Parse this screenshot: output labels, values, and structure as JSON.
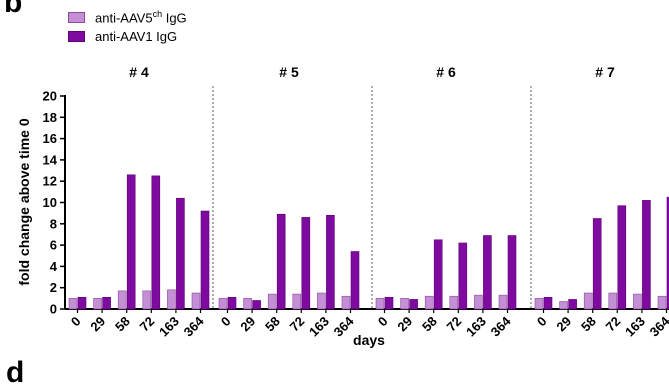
{
  "figure": {
    "panel_letter_top": "b",
    "panel_letter_bottom": "d"
  },
  "legend": {
    "series1_prefix": "anti-AAV5",
    "series1_sup": "ch",
    "series1_suffix": " IgG",
    "series2": "anti-AAV1 IgG"
  },
  "colors": {
    "series1": "#c48fd4",
    "series1_stroke": "#8a4c9c",
    "series2": "#7e0aa0",
    "series2_stroke": "#5e0477",
    "divider": "#777777"
  },
  "chart_data": {
    "type": "bar",
    "ylabel": "fold change above time 0",
    "xlabel": "days",
    "ylim": [
      0,
      20
    ],
    "yticks": [
      0,
      2,
      4,
      6,
      8,
      10,
      12,
      14,
      16,
      18,
      20
    ],
    "categories": [
      "0",
      "29",
      "58",
      "72",
      "163",
      "364"
    ],
    "panels": [
      {
        "title": "# 4",
        "series": [
          {
            "name": "anti-AAV5ch IgG",
            "values": [
              1.0,
              1.0,
              1.7,
              1.7,
              1.8,
              1.5
            ]
          },
          {
            "name": "anti-AAV1 IgG",
            "values": [
              1.1,
              1.1,
              12.6,
              12.5,
              10.4,
              9.2
            ]
          }
        ]
      },
      {
        "title": "# 5",
        "series": [
          {
            "name": "anti-AAV5ch IgG",
            "values": [
              1.0,
              1.0,
              1.4,
              1.4,
              1.5,
              1.2
            ]
          },
          {
            "name": "anti-AAV1 IgG",
            "values": [
              1.1,
              0.8,
              8.9,
              8.6,
              8.8,
              5.4
            ]
          }
        ]
      },
      {
        "title": "# 6",
        "series": [
          {
            "name": "anti-AAV5ch IgG",
            "values": [
              1.0,
              1.0,
              1.2,
              1.2,
              1.3,
              1.3
            ]
          },
          {
            "name": "anti-AAV1 IgG",
            "values": [
              1.1,
              0.9,
              6.5,
              6.2,
              6.9,
              6.9
            ]
          }
        ]
      },
      {
        "title": "# 7",
        "series": [
          {
            "name": "anti-AAV5ch IgG",
            "values": [
              1.0,
              0.7,
              1.5,
              1.5,
              1.4,
              1.2
            ]
          },
          {
            "name": "anti-AAV1 IgG",
            "values": [
              1.1,
              0.9,
              8.5,
              9.7,
              10.2,
              10.5
            ]
          }
        ]
      }
    ],
    "grid": false,
    "legend_position": "top-left"
  }
}
